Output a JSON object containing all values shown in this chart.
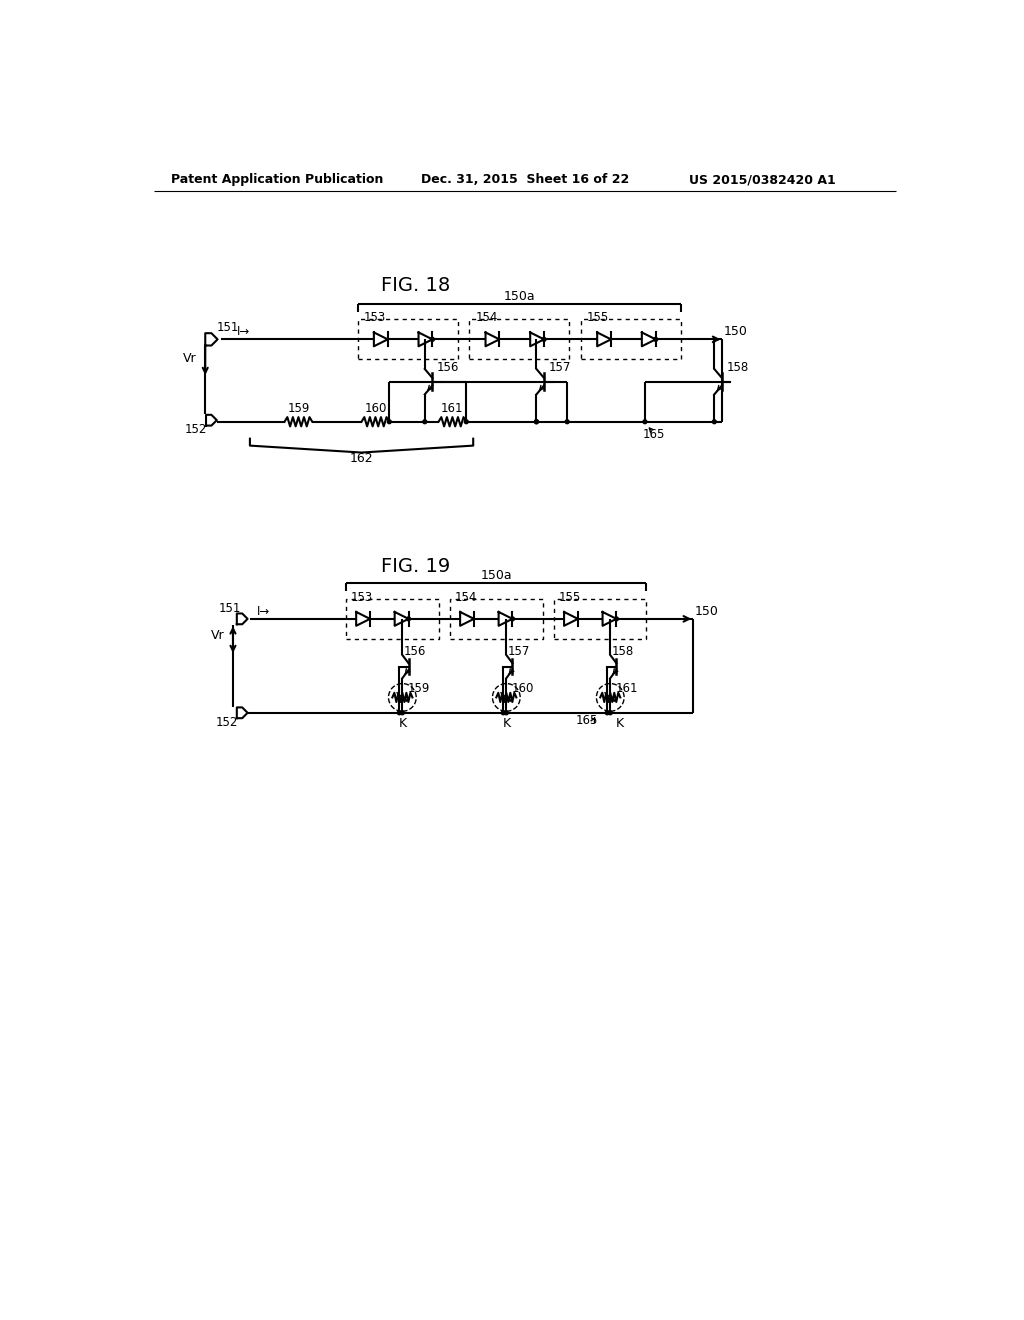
{
  "bg_color": "#ffffff",
  "header_left": "Patent Application Publication",
  "header_mid": "Dec. 31, 2015  Sheet 16 of 22",
  "header_right": "US 2015/0382420 A1",
  "fig18_title": "FIG. 18",
  "fig19_title": "FIG. 19"
}
